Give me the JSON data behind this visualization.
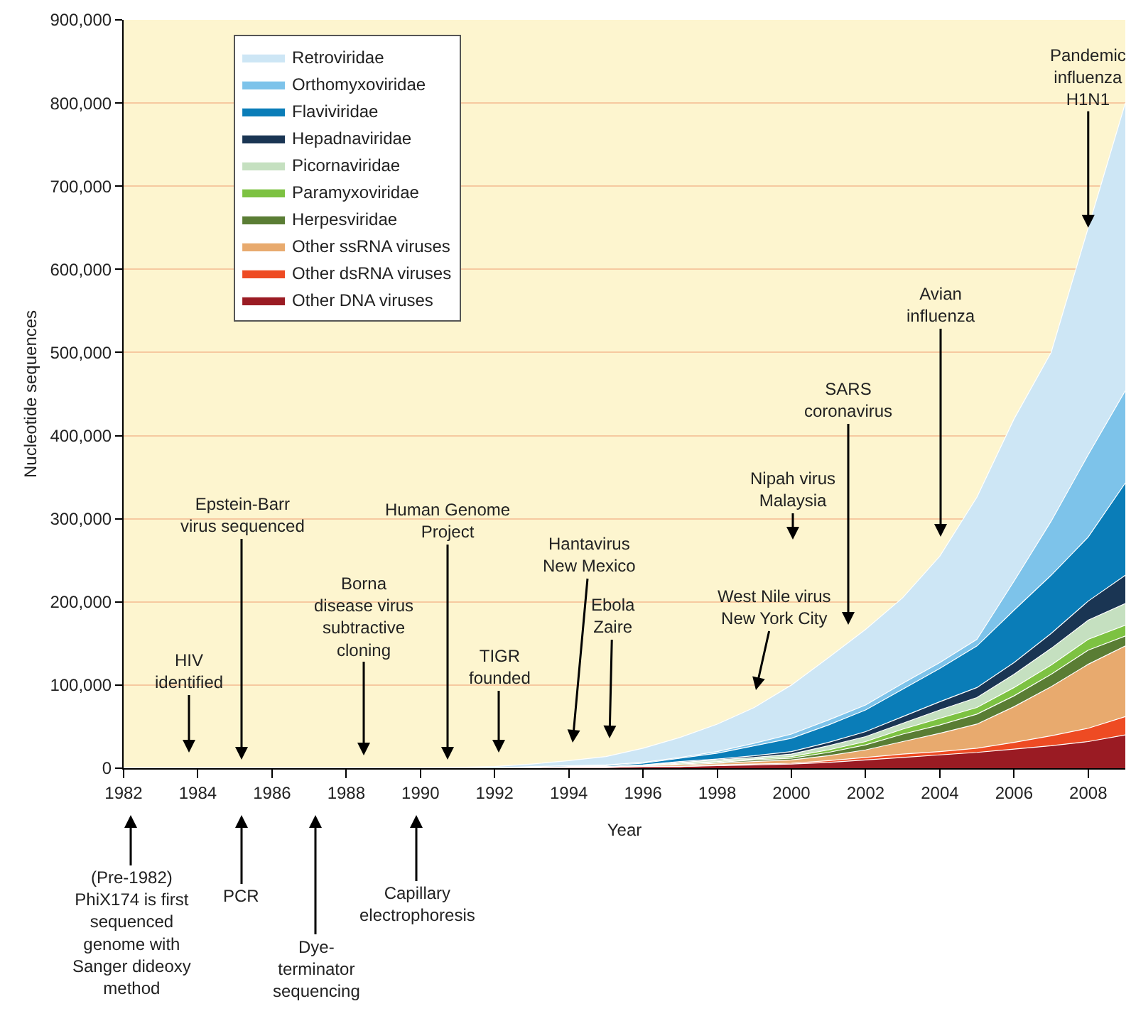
{
  "chart_data": {
    "type": "area",
    "stacked": true,
    "xlabel": "Year",
    "ylabel": "Nucleotide sequences",
    "x": [
      1982,
      1983,
      1984,
      1985,
      1986,
      1987,
      1988,
      1989,
      1990,
      1991,
      1992,
      1993,
      1994,
      1995,
      1996,
      1997,
      1998,
      1999,
      2000,
      2001,
      2002,
      2003,
      2004,
      2005,
      2006,
      2007,
      2008,
      2009
    ],
    "xlim": [
      1982,
      2009
    ],
    "xticks": [
      1982,
      1984,
      1986,
      1988,
      1990,
      1992,
      1994,
      1996,
      1998,
      2000,
      2002,
      2004,
      2006,
      2008
    ],
    "ylim": [
      0,
      900000
    ],
    "yticks": [
      {
        "value": 0,
        "label": "0"
      },
      {
        "value": 100000,
        "label": "100,000"
      },
      {
        "value": 200000,
        "label": "200,000"
      },
      {
        "value": 300000,
        "label": "300,000"
      },
      {
        "value": 400000,
        "label": "400,000"
      },
      {
        "value": 500000,
        "label": "500,000"
      },
      {
        "value": 600000,
        "label": "600,000"
      },
      {
        "value": 700000,
        "label": "700,000"
      },
      {
        "value": 800000,
        "label": "800,000"
      },
      {
        "value": 900000,
        "label": "900,000"
      }
    ],
    "grid": "y",
    "legend": "top left",
    "series": [
      {
        "name": "Other DNA viruses",
        "color": "#9a1b23",
        "values": [
          0,
          0,
          0,
          0,
          0,
          0,
          0,
          0,
          0,
          0,
          0,
          1000,
          1000,
          1000,
          2000,
          2000,
          3000,
          4000,
          5000,
          7000,
          10000,
          13000,
          16000,
          19000,
          23000,
          27000,
          32000,
          40000
        ]
      },
      {
        "name": "Other dsRNA viruses",
        "color": "#ee4b23",
        "values": [
          0,
          0,
          0,
          0,
          0,
          0,
          0,
          0,
          0,
          0,
          0,
          0,
          0,
          0,
          0,
          0,
          1000,
          1000,
          1000,
          2000,
          3000,
          4000,
          4000,
          5000,
          8000,
          12000,
          16000,
          22000
        ]
      },
      {
        "name": "Other ssRNA viruses",
        "color": "#e8aa6e",
        "values": [
          0,
          0,
          0,
          0,
          0,
          0,
          0,
          0,
          0,
          0,
          0,
          0,
          1000,
          1000,
          1000,
          2000,
          2000,
          3000,
          4000,
          6000,
          9000,
          15000,
          22000,
          29000,
          43000,
          59000,
          77000,
          85000
        ]
      },
      {
        "name": "Herpesviridae",
        "color": "#5a7d34",
        "values": [
          0,
          0,
          0,
          0,
          0,
          0,
          0,
          0,
          0,
          0,
          0,
          0,
          0,
          0,
          0,
          1000,
          1000,
          2000,
          2000,
          4000,
          6000,
          9000,
          10000,
          12000,
          13000,
          15000,
          17000,
          12000
        ]
      },
      {
        "name": "Paramyxoviridae",
        "color": "#7dc242",
        "values": [
          0,
          0,
          0,
          0,
          0,
          0,
          0,
          0,
          0,
          0,
          0,
          0,
          0,
          0,
          0,
          1000,
          1000,
          1000,
          2000,
          3000,
          4000,
          6000,
          8000,
          8000,
          10000,
          11000,
          13000,
          13000
        ]
      },
      {
        "name": "Picornaviridae",
        "color": "#c5e0c0",
        "values": [
          0,
          0,
          0,
          0,
          0,
          0,
          0,
          0,
          0,
          0,
          0,
          0,
          0,
          0,
          1000,
          1000,
          2000,
          2000,
          3000,
          5000,
          6000,
          7000,
          10000,
          12000,
          16000,
          20000,
          23000,
          26000
        ]
      },
      {
        "name": "Hepadnaviridae",
        "color": "#1a3553",
        "values": [
          0,
          0,
          0,
          0,
          0,
          0,
          0,
          0,
          0,
          0,
          0,
          0,
          0,
          0,
          0,
          1000,
          1000,
          2000,
          3000,
          4000,
          6000,
          8000,
          10000,
          12000,
          14000,
          18000,
          23000,
          34000
        ]
      },
      {
        "name": "Flaviviridae",
        "color": "#0a7db8",
        "values": [
          0,
          0,
          0,
          0,
          0,
          0,
          0,
          0,
          0,
          0,
          0,
          1000,
          1000,
          1000,
          2000,
          4000,
          7000,
          12000,
          16000,
          21000,
          26000,
          33000,
          40000,
          50000,
          63000,
          70000,
          77000,
          111000
        ]
      },
      {
        "name": "Orthomyxoviridae",
        "color": "#7dc3ea",
        "values": [
          0,
          0,
          0,
          0,
          0,
          0,
          0,
          0,
          0,
          0,
          0,
          0,
          0,
          1000,
          1000,
          1000,
          2000,
          3000,
          5000,
          6000,
          6000,
          7000,
          7000,
          8000,
          35000,
          65000,
          99000,
          111000
        ]
      },
      {
        "name": "Retroviridae",
        "color": "#cde6f5",
        "values": [
          0,
          0,
          0,
          0,
          0,
          0,
          0,
          0,
          0,
          1000,
          2000,
          3000,
          6000,
          10000,
          17000,
          24000,
          33000,
          43000,
          59000,
          75000,
          91000,
          103000,
          128000,
          171000,
          195000,
          203000,
          273000,
          346000
        ]
      }
    ],
    "annotations": [
      "HIV\nidentified",
      "Epstein-Barr\nvirus sequenced",
      "Borna\ndisease virus\nsubtractive\ncloning",
      "Human Genome\nProject",
      "TIGR\nfounded",
      "Hantavirus\nNew Mexico",
      "Ebola\nZaire",
      "West Nile virus\nNew York City",
      "Nipah virus\nMalaysia",
      "SARS\ncoronavirus",
      "Avian\ninfluenza",
      {
        "text": "Pandemic\ninfluenza\nH1N1",
        "x": 2008,
        "y": 650000
      },
      "(Pre-1982)\nPhiX174 is first\nsequenced\ngenome with\nSanger dideoxy\nmethod",
      "PCR",
      "Dye-\nterminator\nsequencing",
      "Capillary\nelectrophoresis"
    ]
  }
}
